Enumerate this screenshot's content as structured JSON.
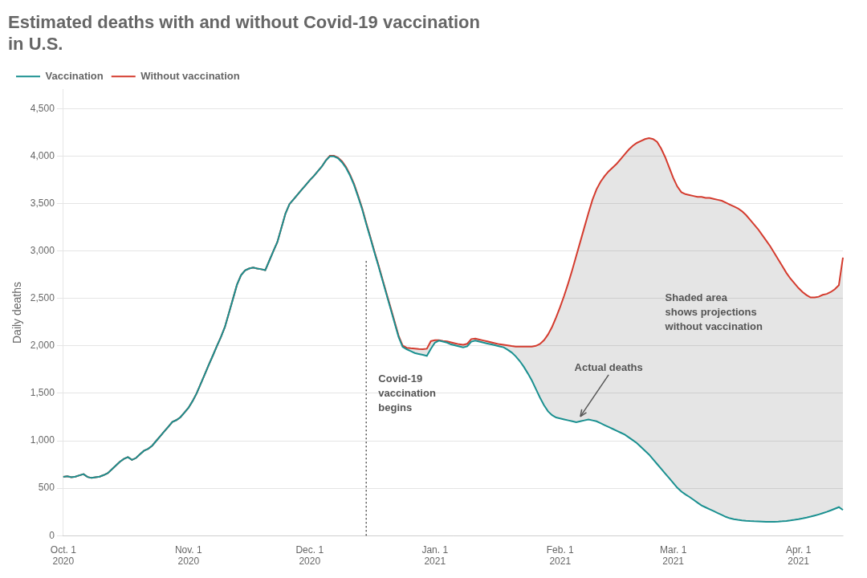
{
  "chart_data": {
    "type": "line",
    "title": "Estimated deaths with and without Covid-19 vaccination\nin U.S.",
    "y_label": "Daily deaths",
    "categories": [
      "Oct. 1\n2020",
      null,
      null,
      null,
      null,
      null,
      null,
      null,
      null,
      null,
      null,
      null,
      null,
      null,
      null,
      null,
      null,
      null,
      null,
      null,
      null,
      null,
      null,
      null,
      null,
      null,
      null,
      null,
      null,
      null,
      null,
      "Nov. 1\n2020",
      null,
      null,
      null,
      null,
      null,
      null,
      null,
      null,
      null,
      null,
      null,
      null,
      null,
      null,
      null,
      null,
      null,
      null,
      null,
      null,
      null,
      null,
      null,
      null,
      null,
      null,
      null,
      null,
      null,
      "Dec. 1\n2020",
      null,
      null,
      null,
      null,
      null,
      null,
      null,
      null,
      null,
      null,
      null,
      null,
      null,
      null,
      null,
      null,
      null,
      null,
      null,
      null,
      null,
      null,
      null,
      null,
      null,
      null,
      null,
      null,
      null,
      null,
      "Jan. 1\n2021",
      null,
      null,
      null,
      null,
      null,
      null,
      null,
      null,
      null,
      null,
      null,
      null,
      null,
      null,
      null,
      null,
      null,
      null,
      null,
      null,
      null,
      null,
      null,
      null,
      null,
      null,
      null,
      null,
      null,
      null,
      "Feb. 1\n2021",
      null,
      null,
      null,
      null,
      null,
      null,
      null,
      null,
      null,
      null,
      null,
      null,
      null,
      null,
      null,
      null,
      null,
      null,
      null,
      null,
      null,
      null,
      null,
      null,
      null,
      null,
      null,
      "Mar. 1\n2021",
      null,
      null,
      null,
      null,
      null,
      null,
      null,
      null,
      null,
      null,
      null,
      null,
      null,
      null,
      null,
      null,
      null,
      null,
      null,
      null,
      null,
      null,
      null,
      null,
      null,
      null,
      null,
      null,
      null,
      null,
      "Apr. 1\n2021",
      null,
      null,
      null,
      null,
      null,
      null,
      null,
      null,
      null,
      null,
      null
    ],
    "series": [
      {
        "name": "Vaccination",
        "color": "#1a9090",
        "values": [
          620,
          625,
          615,
          622,
          635,
          648,
          618,
          608,
          615,
          622,
          638,
          658,
          698,
          738,
          778,
          808,
          828,
          798,
          818,
          858,
          895,
          915,
          948,
          998,
          1048,
          1098,
          1148,
          1198,
          1218,
          1248,
          1298,
          1348,
          1418,
          1498,
          1598,
          1698,
          1798,
          1895,
          1995,
          2090,
          2198,
          2345,
          2495,
          2645,
          2745,
          2795,
          2815,
          2825,
          2815,
          2808,
          2798,
          2898,
          2998,
          3095,
          3245,
          3395,
          3495,
          3545,
          3595,
          3645,
          3695,
          3745,
          3790,
          3840,
          3890,
          3955,
          3998,
          3998,
          3978,
          3935,
          3875,
          3795,
          3695,
          3570,
          3440,
          3285,
          3140,
          2990,
          2845,
          2695,
          2545,
          2395,
          2245,
          2095,
          1990,
          1965,
          1945,
          1925,
          1915,
          1905,
          1895,
          1970,
          2035,
          2055,
          2045,
          2035,
          2015,
          2005,
          1995,
          1985,
          1995,
          2045,
          2055,
          2045,
          2035,
          2025,
          2015,
          2005,
          1995,
          1985,
          1960,
          1930,
          1890,
          1840,
          1780,
          1710,
          1635,
          1545,
          1455,
          1375,
          1310,
          1270,
          1245,
          1235,
          1225,
          1215,
          1205,
          1195,
          1205,
          1215,
          1225,
          1215,
          1205,
          1185,
          1165,
          1145,
          1125,
          1105,
          1085,
          1065,
          1035,
          1005,
          975,
          935,
          895,
          855,
          805,
          755,
          705,
          655,
          605,
          555,
          505,
          465,
          435,
          408,
          378,
          348,
          318,
          298,
          278,
          258,
          238,
          218,
          198,
          183,
          173,
          166,
          160,
          156,
          153,
          151,
          150,
          148,
          146,
          145,
          146,
          148,
          151,
          155,
          160,
          166,
          173,
          181,
          190,
          200,
          211,
          223,
          236,
          250,
          266,
          283,
          300,
          270
        ]
      },
      {
        "name": "Without vaccination",
        "color": "#d43b2e",
        "values": [
          620,
          625,
          615,
          622,
          635,
          648,
          618,
          608,
          615,
          622,
          638,
          658,
          698,
          738,
          778,
          808,
          828,
          798,
          818,
          858,
          895,
          915,
          948,
          998,
          1048,
          1098,
          1148,
          1198,
          1218,
          1248,
          1298,
          1348,
          1418,
          1498,
          1598,
          1698,
          1798,
          1895,
          1995,
          2090,
          2198,
          2345,
          2495,
          2645,
          2745,
          2795,
          2815,
          2825,
          2815,
          2808,
          2798,
          2898,
          2998,
          3095,
          3245,
          3395,
          3495,
          3545,
          3595,
          3645,
          3695,
          3745,
          3790,
          3840,
          3890,
          3955,
          4005,
          4005,
          3985,
          3945,
          3885,
          3805,
          3705,
          3580,
          3450,
          3295,
          3150,
          3000,
          2855,
          2705,
          2555,
          2408,
          2258,
          2108,
          2005,
          1980,
          1975,
          1972,
          1968,
          1965,
          1970,
          2050,
          2060,
          2060,
          2052,
          2047,
          2037,
          2027,
          2017,
          2012,
          2022,
          2072,
          2077,
          2067,
          2057,
          2047,
          2037,
          2027,
          2017,
          2012,
          2005,
          1998,
          1993,
          1993,
          1993,
          1993,
          1993,
          2000,
          2020,
          2060,
          2120,
          2200,
          2300,
          2410,
          2530,
          2660,
          2800,
          2950,
          3100,
          3250,
          3400,
          3540,
          3650,
          3730,
          3790,
          3840,
          3880,
          3920,
          3970,
          4020,
          4070,
          4110,
          4140,
          4160,
          4180,
          4190,
          4180,
          4150,
          4080,
          3990,
          3880,
          3770,
          3680,
          3620,
          3600,
          3590,
          3580,
          3570,
          3570,
          3560,
          3560,
          3550,
          3540,
          3530,
          3510,
          3490,
          3470,
          3450,
          3420,
          3380,
          3330,
          3280,
          3230,
          3170,
          3110,
          3050,
          2980,
          2910,
          2840,
          2770,
          2710,
          2660,
          2610,
          2568,
          2535,
          2510,
          2510,
          2518,
          2538,
          2548,
          2568,
          2598,
          2640,
          2930
        ]
      }
    ],
    "ylim": [
      0,
      4700
    ],
    "yticks": [
      0,
      500,
      1000,
      1500,
      2000,
      2500,
      3000,
      3500,
      4000,
      4500
    ],
    "grid": true,
    "legend": "upper left",
    "annotations": [
      "Covid-19\nvaccination\nbegins",
      "Actual deaths",
      "Shaded area\nshows projections\nwithout vaccination"
    ]
  }
}
